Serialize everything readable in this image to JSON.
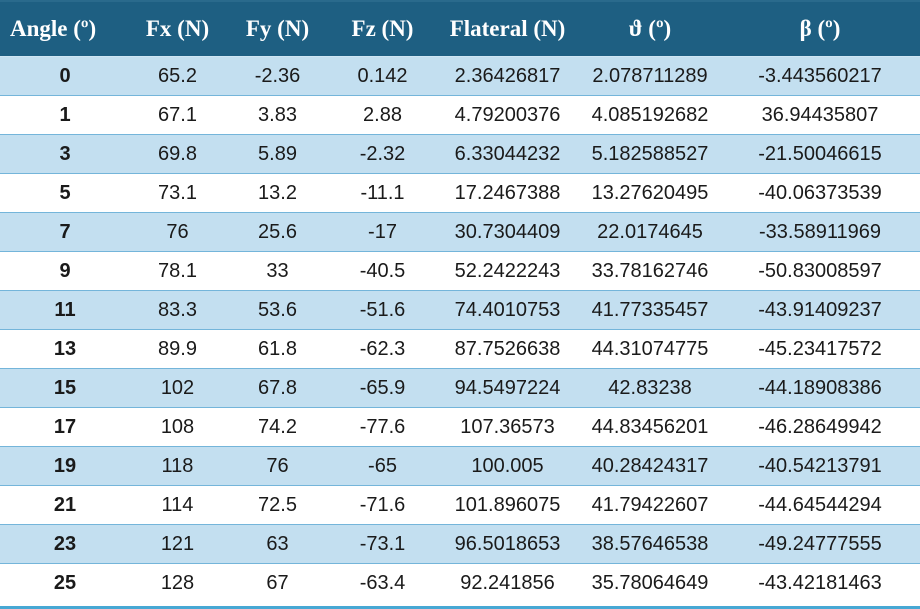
{
  "table": {
    "columns": [
      {
        "label": "Angle (º)"
      },
      {
        "label": "Fx (N)"
      },
      {
        "label": "Fy (N)"
      },
      {
        "label": "Fz (N)"
      },
      {
        "label": "Flateral (N)"
      },
      {
        "label": "ϑ (º)"
      },
      {
        "label": "β (º)"
      }
    ],
    "rows": [
      [
        "0",
        "65.2",
        "-2.36",
        "0.142",
        "2.36426817",
        "2.078711289",
        "-3.443560217"
      ],
      [
        "1",
        "67.1",
        "3.83",
        "2.88",
        "4.79200376",
        "4.085192682",
        "36.94435807"
      ],
      [
        "3",
        "69.8",
        "5.89",
        "-2.32",
        "6.33044232",
        "5.182588527",
        "-21.50046615"
      ],
      [
        "5",
        "73.1",
        "13.2",
        "-11.1",
        "17.2467388",
        "13.27620495",
        "-40.06373539"
      ],
      [
        "7",
        "76",
        "25.6",
        "-17",
        "30.7304409",
        "22.0174645",
        "-33.58911969"
      ],
      [
        "9",
        "78.1",
        "33",
        "-40.5",
        "52.2422243",
        "33.78162746",
        "-50.83008597"
      ],
      [
        "11",
        "83.3",
        "53.6",
        "-51.6",
        "74.4010753",
        "41.77335457",
        "-43.91409237"
      ],
      [
        "13",
        "89.9",
        "61.8",
        "-62.3",
        "87.7526638",
        "44.31074775",
        "-45.23417572"
      ],
      [
        "15",
        "102",
        "67.8",
        "-65.9",
        "94.5497224",
        "42.83238",
        "-44.18908386"
      ],
      [
        "17",
        "108",
        "74.2",
        "-77.6",
        "107.36573",
        "44.83456201",
        "-46.28649942"
      ],
      [
        "19",
        "118",
        "76",
        "-65",
        "100.005",
        "40.28424317",
        "-40.54213791"
      ],
      [
        "21",
        "114",
        "72.5",
        "-71.6",
        "101.896075",
        "41.79422607",
        "-44.64544294"
      ],
      [
        "23",
        "121",
        "63",
        "-73.1",
        "96.5018653",
        "38.57646538",
        "-49.24777555"
      ],
      [
        "25",
        "128",
        "67",
        "-63.4",
        "92.241856",
        "35.78064649",
        "-43.42181463"
      ]
    ]
  },
  "chart_data": {
    "type": "table",
    "title": "",
    "columns": [
      "Angle (º)",
      "Fx (N)",
      "Fy (N)",
      "Fz (N)",
      "Flateral (N)",
      "ϑ (º)",
      "β (º)"
    ],
    "x": [
      0,
      1,
      3,
      5,
      7,
      9,
      11,
      13,
      15,
      17,
      19,
      21,
      23,
      25
    ],
    "series": [
      {
        "name": "Fx (N)",
        "values": [
          65.2,
          67.1,
          69.8,
          73.1,
          76,
          78.1,
          83.3,
          89.9,
          102,
          108,
          118,
          114,
          121,
          128
        ]
      },
      {
        "name": "Fy (N)",
        "values": [
          -2.36,
          3.83,
          5.89,
          13.2,
          25.6,
          33,
          53.6,
          61.8,
          67.8,
          74.2,
          76,
          72.5,
          63,
          67
        ]
      },
      {
        "name": "Fz (N)",
        "values": [
          0.142,
          2.88,
          -2.32,
          -11.1,
          -17,
          -40.5,
          -51.6,
          -62.3,
          -65.9,
          -77.6,
          -65,
          -71.6,
          -73.1,
          -63.4
        ]
      },
      {
        "name": "Flateral (N)",
        "values": [
          2.36426817,
          4.79200376,
          6.33044232,
          17.2467388,
          30.7304409,
          52.2422243,
          74.4010753,
          87.7526638,
          94.5497224,
          107.36573,
          100.005,
          101.896075,
          96.5018653,
          92.241856
        ]
      },
      {
        "name": "ϑ (º)",
        "values": [
          2.078711289,
          4.085192682,
          5.182588527,
          13.27620495,
          22.0174645,
          33.78162746,
          41.77335457,
          44.31074775,
          42.83238,
          44.83456201,
          40.28424317,
          41.79422607,
          38.57646538,
          35.78064649
        ]
      },
      {
        "name": "β (º)",
        "values": [
          -3.443560217,
          36.94435807,
          -21.50046615,
          -40.06373539,
          -33.58911969,
          -50.83008597,
          -43.91409237,
          -45.23417572,
          -44.18908386,
          -46.28649942,
          -40.54213791,
          -44.64544294,
          -49.24777555,
          -43.42181463
        ]
      }
    ]
  },
  "colors": {
    "header_bg": "#1e5f82",
    "header_text": "#ffffff",
    "band_row_bg": "#c3dff0",
    "plain_row_bg": "#ffffff",
    "row_divider": "#74b5da",
    "outer_bottom_border": "#47a8d4",
    "cell_text": "#1a1a1a"
  }
}
